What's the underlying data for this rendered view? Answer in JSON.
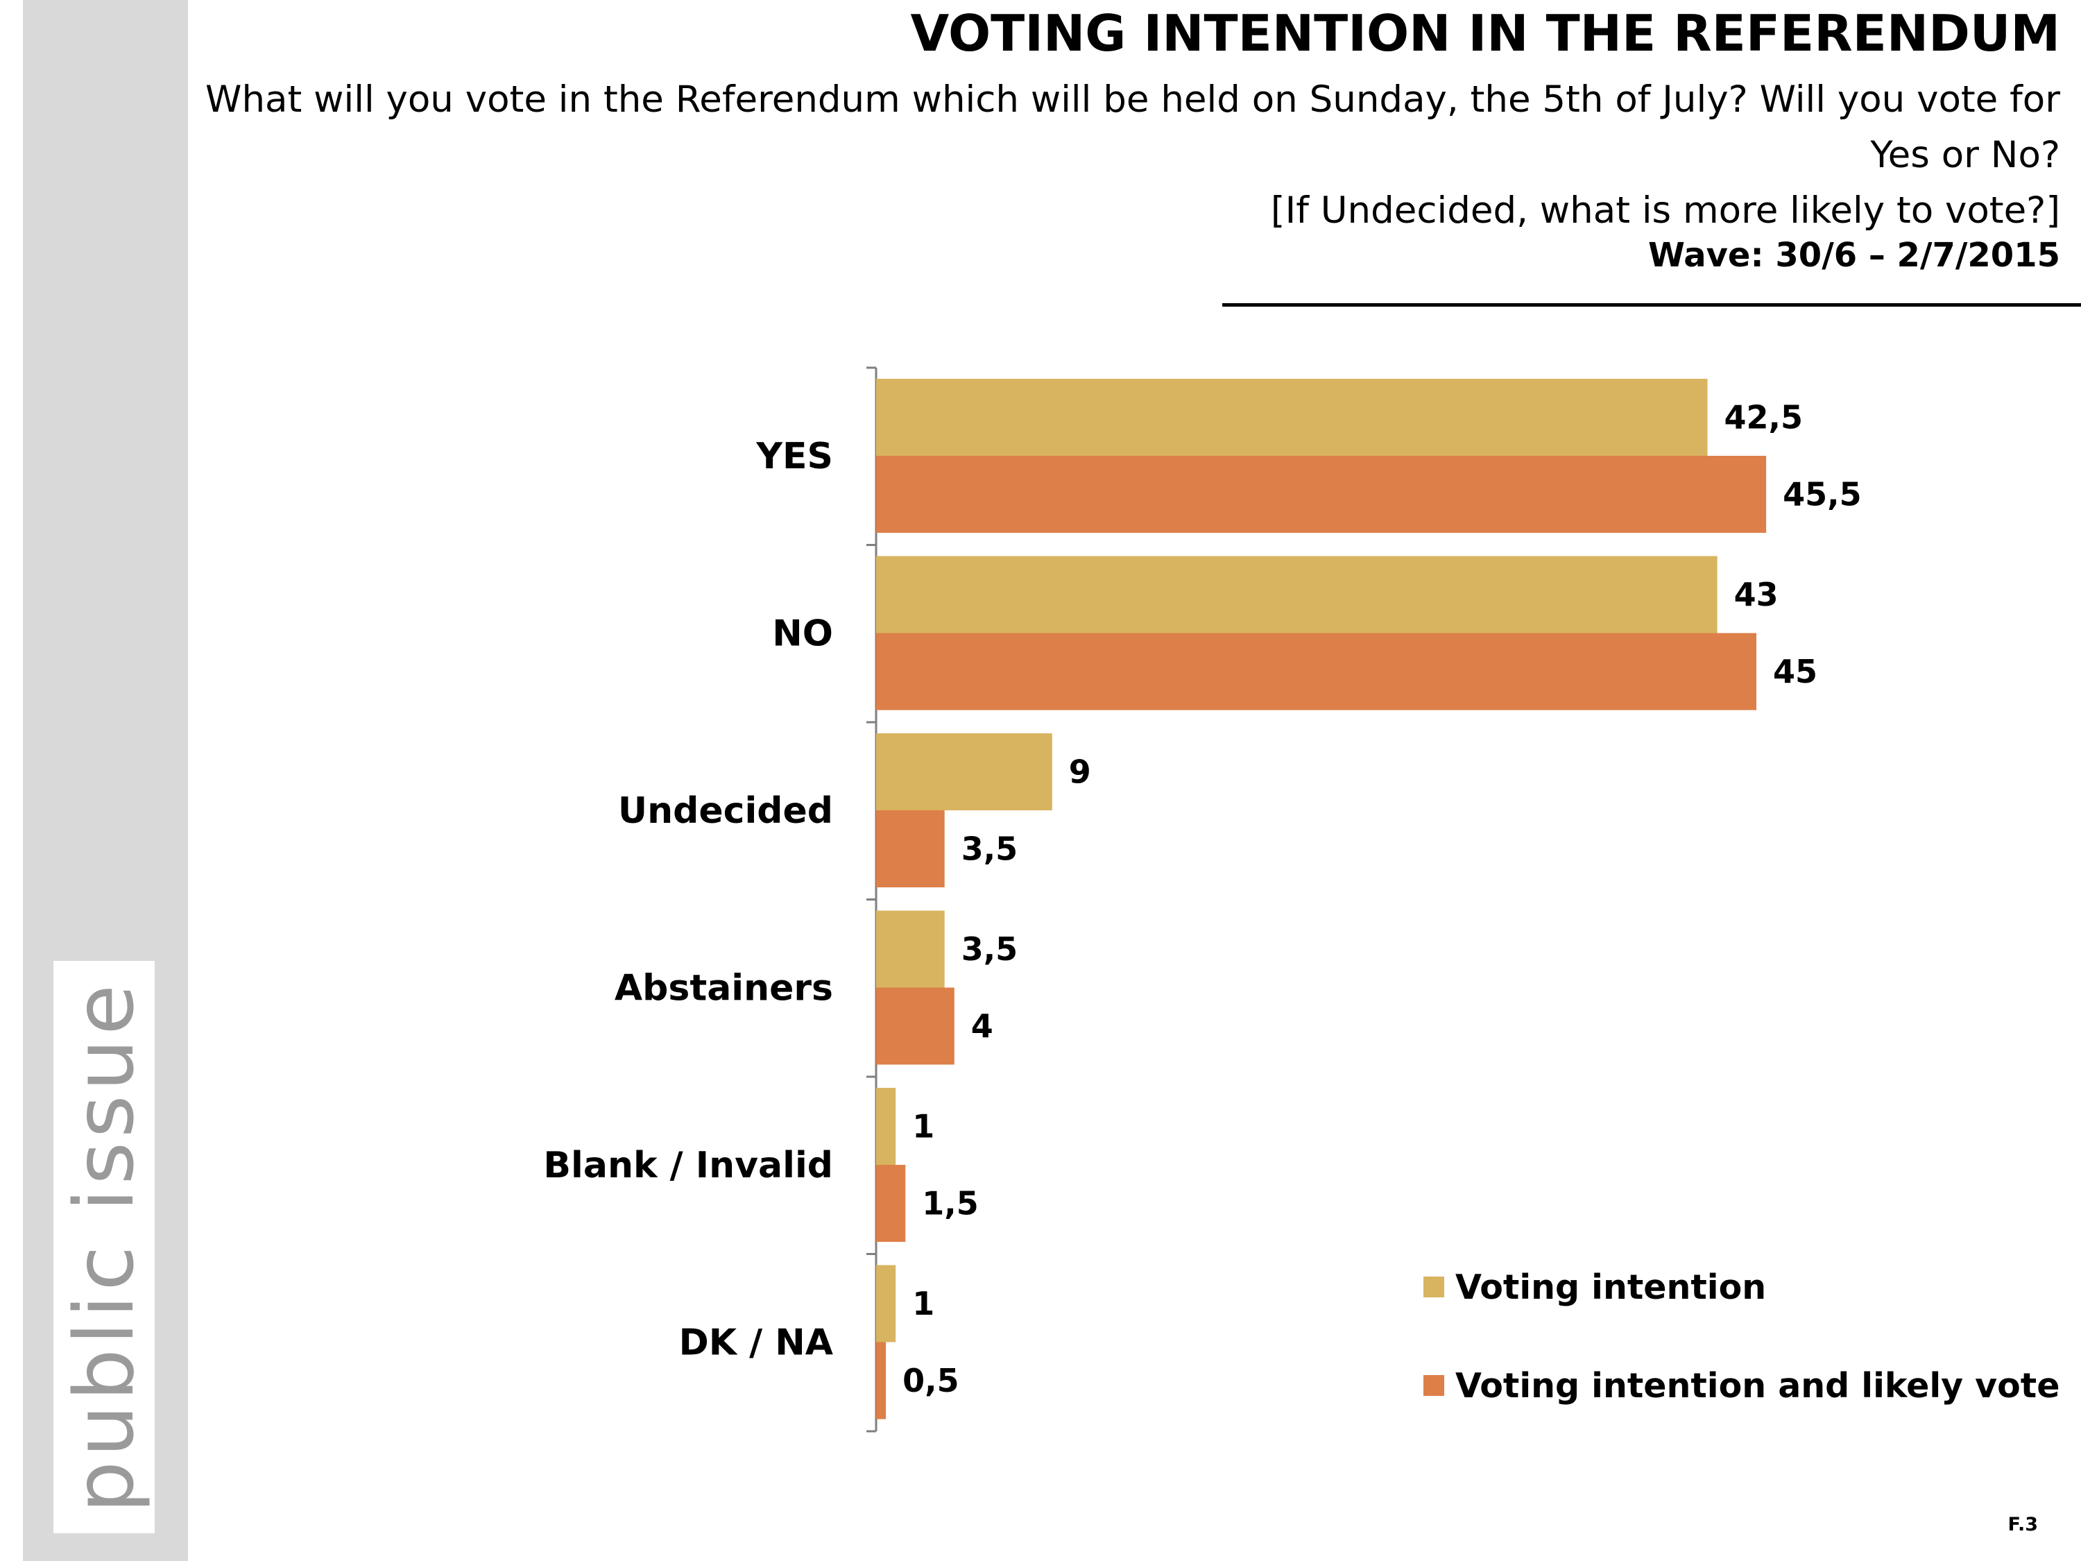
{
  "logo": {
    "text": "public issue"
  },
  "header": {
    "title": "VOTING INTENTION IN THE REFERENDUM",
    "subtitle_line1": "What will you vote in the Referendum which will be held on Sunday, the 5th of July? Will you vote for Yes or No?",
    "subtitle_line2": "[If Undecided, what is more likely to vote?]",
    "wave": "Wave: 30/6 – 2/7/2015"
  },
  "chart_data": {
    "type": "bar",
    "orientation": "horizontal",
    "categories": [
      "YES",
      "NO",
      "Undecided",
      "Abstainers",
      "Blank / Invalid",
      "DK / NA"
    ],
    "series": [
      {
        "name": "Voting intention",
        "color": "#D8B460",
        "values": [
          42.5,
          43,
          9,
          3.5,
          1,
          1
        ],
        "labels": [
          "42,5",
          "43",
          "9",
          "3,5",
          "1",
          "1"
        ]
      },
      {
        "name": "Voting intention and likely vote",
        "color": "#DD7F48",
        "values": [
          45.5,
          45,
          3.5,
          4,
          1.5,
          0.5
        ],
        "labels": [
          "45,5",
          "45",
          "3,5",
          "4",
          "1,5",
          "0,5"
        ]
      }
    ],
    "xlim": [
      0,
      50
    ],
    "legend_position": "bottom-right",
    "grid": false
  },
  "footer": {
    "page": "F.3"
  }
}
